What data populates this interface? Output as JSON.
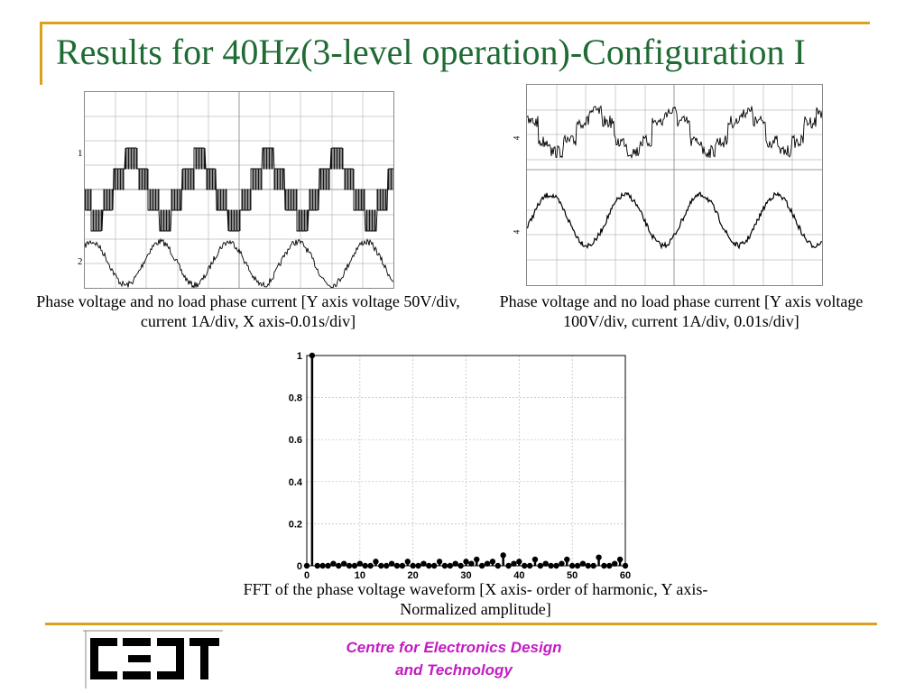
{
  "slide": {
    "title": "Results for 40Hz(3-level operation)-Configuration I",
    "caption_left": "Phase voltage and no load phase current [Y axis voltage 50V/div, current 1A/div, X axis-0.01s/div]",
    "caption_right": "Phase voltage and no load phase current [Y axis voltage 100V/div, current 1A/div, 0.01s/div]",
    "caption_fft": "FFT of the phase voltage waveform [X axis- order of harmonic, Y axis- Normalized amplitude]",
    "org_line1": "Centre for Electronics Design",
    "org_line2": "and Technology",
    "logo_text": "CEDT",
    "colors": {
      "title": "#1f6b34",
      "accent_line": "#dca11a",
      "org_text": "#c21cc2"
    }
  },
  "scope_left": {
    "channel_labels": [
      "1",
      "2"
    ]
  },
  "scope_right": {
    "channel_labels": [
      "4",
      "4"
    ]
  },
  "chart_data": [
    {
      "type": "scatter",
      "title": "",
      "xlabel": "",
      "ylabel": "",
      "xlim": [
        0,
        60
      ],
      "ylim": [
        0,
        1
      ],
      "x_ticks": [
        0,
        10,
        20,
        30,
        40,
        50,
        60
      ],
      "y_ticks": [
        0,
        0.2,
        0.4,
        0.6,
        0.8,
        1
      ],
      "grid": true,
      "style": "stem",
      "x": [
        0,
        1,
        2,
        3,
        4,
        5,
        6,
        7,
        8,
        9,
        10,
        11,
        12,
        13,
        14,
        15,
        16,
        17,
        18,
        19,
        20,
        21,
        22,
        23,
        24,
        25,
        26,
        27,
        28,
        29,
        30,
        31,
        32,
        33,
        34,
        35,
        36,
        37,
        38,
        39,
        40,
        41,
        42,
        43,
        44,
        45,
        46,
        47,
        48,
        49,
        50,
        51,
        52,
        53,
        54,
        55,
        56,
        57,
        58,
        59,
        60
      ],
      "y": [
        0,
        1,
        0,
        0,
        0,
        0.01,
        0,
        0.01,
        0,
        0,
        0.01,
        0,
        0,
        0.02,
        0,
        0,
        0.01,
        0,
        0,
        0.02,
        0,
        0,
        0.01,
        0,
        0,
        0.02,
        0,
        0,
        0.01,
        0,
        0.02,
        0.01,
        0.03,
        0,
        0.01,
        0.02,
        0,
        0.05,
        0,
        0.01,
        0.02,
        0,
        0,
        0.03,
        0,
        0.01,
        0,
        0,
        0.01,
        0.03,
        0,
        0,
        0.01,
        0,
        0,
        0.04,
        0,
        0,
        0.01,
        0.03,
        0
      ]
    }
  ]
}
